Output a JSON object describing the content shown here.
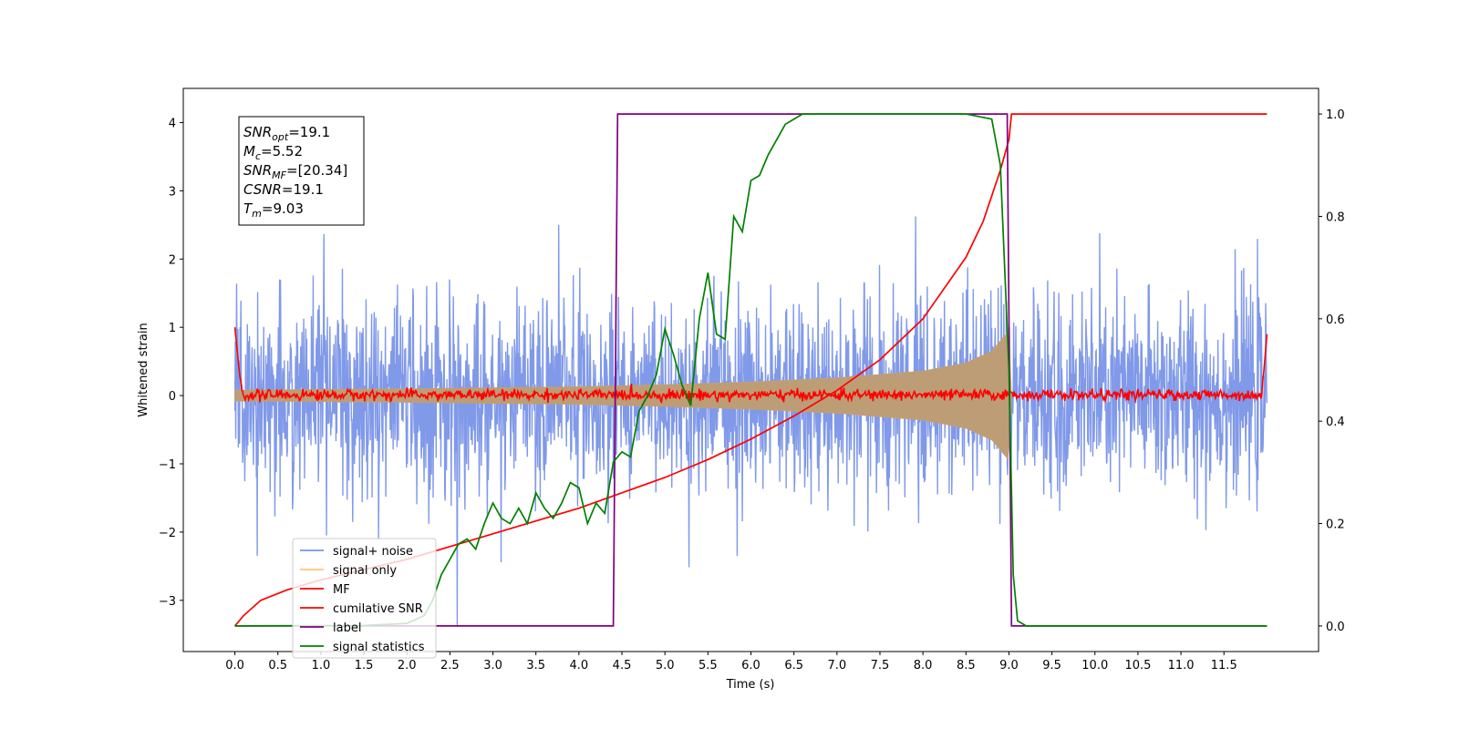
{
  "chart_data": {
    "type": "line",
    "xlabel": "Time (s)",
    "ylabel": "Whitened strain",
    "xlim": [
      -0.6,
      12.6
    ],
    "ylim": [
      -3.75,
      4.5
    ],
    "y2lim": [
      -0.05,
      1.05
    ],
    "x_ticks": [
      0.0,
      0.5,
      1.0,
      1.5,
      2.0,
      2.5,
      3.0,
      3.5,
      4.0,
      4.5,
      5.0,
      5.5,
      6.0,
      6.5,
      7.0,
      7.5,
      8.0,
      8.5,
      9.0,
      9.5,
      10.0,
      10.5,
      11.0,
      11.5
    ],
    "x_tick_labels": [
      "0.0",
      "0.5",
      "1.0",
      "1.5",
      "2.0",
      "2.5",
      "3.0",
      "3.5",
      "4.0",
      "4.5",
      "5.0",
      "5.5",
      "6.0",
      "6.5",
      "7.0",
      "7.5",
      "8.0",
      "8.5",
      "9.0",
      "9.5",
      "10.0",
      "10.5",
      "11.0",
      "11.5"
    ],
    "y_ticks": [
      -3,
      -2,
      -1,
      0,
      1,
      2,
      3,
      4
    ],
    "y_tick_labels": [
      "−3",
      "−2",
      "−1",
      "0",
      "1",
      "2",
      "3",
      "4"
    ],
    "y2_ticks": [
      0.0,
      0.2,
      0.4,
      0.6,
      0.8,
      1.0
    ],
    "y2_tick_labels": [
      "0.0",
      "0.2",
      "0.4",
      "0.6",
      "0.8",
      "1.0"
    ],
    "legend_position": "lower-left",
    "grid": false,
    "series": [
      {
        "name": "signal+ noise",
        "color": "#7994e8",
        "axis": "left",
        "style": "noise",
        "x_range": [
          0.0,
          12.0
        ],
        "amplitude": 2.2
      },
      {
        "name": "signal only",
        "color": "#fdc67a",
        "axis": "left",
        "style": "chirp",
        "x_range": [
          0.0,
          9.03
        ],
        "envelope": {
          "x": [
            0.0,
            2.0,
            4.0,
            5.0,
            6.0,
            7.0,
            8.0,
            8.5,
            8.8,
            9.0,
            9.03
          ],
          "y": [
            0.08,
            0.1,
            0.13,
            0.16,
            0.2,
            0.26,
            0.36,
            0.48,
            0.65,
            0.95,
            0.0
          ]
        }
      },
      {
        "name": "MF",
        "color": "#ff0000",
        "axis": "left",
        "style": "mf",
        "x_range": [
          0.0,
          12.0
        ],
        "edge_values": [
          1.0,
          0.9
        ],
        "noise_amplitude": 0.07
      },
      {
        "name": "cumilative SNR",
        "color": "#ff0000",
        "axis": "right",
        "x": [
          0.0,
          0.1,
          0.3,
          0.6,
          1.0,
          1.5,
          2.0,
          2.5,
          3.0,
          3.5,
          4.0,
          4.5,
          5.0,
          5.5,
          6.0,
          6.5,
          7.0,
          7.5,
          8.0,
          8.5,
          8.7,
          8.9,
          9.0,
          9.03,
          12.0
        ],
        "y": [
          0.0,
          0.02,
          0.05,
          0.07,
          0.09,
          0.11,
          0.13,
          0.155,
          0.18,
          0.205,
          0.23,
          0.26,
          0.29,
          0.325,
          0.365,
          0.41,
          0.46,
          0.52,
          0.6,
          0.72,
          0.79,
          0.89,
          0.95,
          1.0,
          1.0
        ]
      },
      {
        "name": "label",
        "color": "#800080",
        "axis": "right",
        "x": [
          0.0,
          4.4,
          4.45,
          8.98,
          9.03,
          12.0
        ],
        "y": [
          0.0,
          0.0,
          1.0,
          1.0,
          0.0,
          0.0
        ]
      },
      {
        "name": "signal statistics",
        "color": "#008000",
        "axis": "right",
        "x": [
          0.0,
          1.5,
          2.0,
          2.2,
          2.3,
          2.4,
          2.5,
          2.6,
          2.7,
          2.8,
          2.9,
          3.0,
          3.1,
          3.2,
          3.3,
          3.4,
          3.5,
          3.6,
          3.7,
          3.8,
          3.9,
          4.0,
          4.1,
          4.2,
          4.3,
          4.4,
          4.5,
          4.6,
          4.7,
          4.8,
          4.9,
          5.0,
          5.1,
          5.2,
          5.3,
          5.4,
          5.5,
          5.6,
          5.7,
          5.8,
          5.9,
          6.0,
          6.1,
          6.2,
          6.3,
          6.4,
          6.5,
          6.6,
          6.7,
          6.8,
          7.0,
          7.5,
          8.0,
          8.5,
          8.8,
          8.9,
          9.0,
          9.05,
          9.1,
          9.2,
          9.3,
          12.0
        ],
        "y": [
          0.0,
          0.001,
          0.005,
          0.02,
          0.05,
          0.1,
          0.13,
          0.16,
          0.17,
          0.15,
          0.2,
          0.24,
          0.21,
          0.2,
          0.23,
          0.2,
          0.26,
          0.23,
          0.21,
          0.24,
          0.28,
          0.27,
          0.2,
          0.24,
          0.22,
          0.32,
          0.34,
          0.33,
          0.42,
          0.45,
          0.49,
          0.58,
          0.53,
          0.47,
          0.43,
          0.6,
          0.69,
          0.57,
          0.56,
          0.8,
          0.77,
          0.87,
          0.88,
          0.92,
          0.95,
          0.98,
          0.99,
          1.0,
          1.0,
          1.0,
          1.0,
          1.0,
          1.0,
          1.0,
          0.99,
          0.9,
          0.5,
          0.1,
          0.01,
          0.0,
          0.0,
          0.0
        ]
      }
    ],
    "annotations": [
      {
        "base": "SNR",
        "sub": "opt",
        "value": "=19.1"
      },
      {
        "base": "M",
        "sub": "c",
        "value": "=5.52"
      },
      {
        "base": "SNR",
        "sub": "MF",
        "value": "=[20.34]"
      },
      {
        "base": "CSNR",
        "sub": "",
        "value": "=19.1"
      },
      {
        "base": "T",
        "sub": "m",
        "value": "=9.03"
      }
    ]
  }
}
